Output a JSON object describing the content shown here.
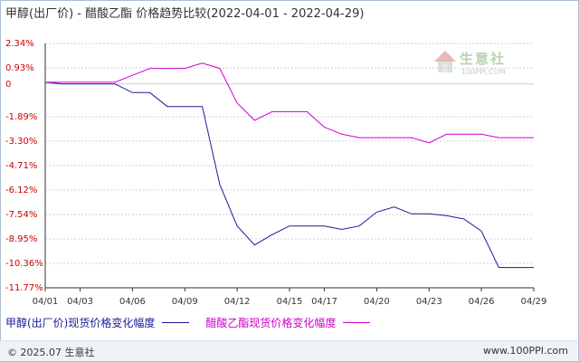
{
  "title": "甲醇(出厂价) - 醋酸乙酯 价格趋势比较(2022-04-01 - 2022-04-29)",
  "watermark": {
    "name": "生意社",
    "url": "100PPI.COM",
    "logo_icon": "house-logo-icon"
  },
  "legend": [
    {
      "label": "甲醇(出厂价)现货价格变化幅度",
      "color": "#1a1a99"
    },
    {
      "label": "醋酸乙酯现货价格变化幅度",
      "color": "#cc00cc"
    }
  ],
  "footer": {
    "copyright": "© 2025.07 生意社",
    "site": "www.100PPI.com"
  },
  "chart_data": {
    "type": "line",
    "ylim": [
      -11.77,
      2.34
    ],
    "xlim": [
      0,
      28
    ],
    "yticks": [
      2.34,
      0.93,
      0,
      -1.89,
      -3.3,
      -4.71,
      -6.12,
      -7.54,
      -8.95,
      -10.36,
      -11.77
    ],
    "ytick_labels": [
      "2.34%",
      "0.93%",
      "0",
      "-1.89%",
      "-3.30%",
      "-4.71%",
      "-6.12%",
      "-7.54%",
      "-8.95%",
      "-10.36%",
      "-11.77%"
    ],
    "xticks": [
      0,
      2,
      5,
      8,
      11,
      14,
      16,
      19,
      22,
      25,
      28
    ],
    "xtick_labels": [
      "04/01",
      "04/03",
      "04/06",
      "04/09",
      "04/12",
      "04/15",
      "04/17",
      "04/20",
      "04/23",
      "04/26",
      "04/29"
    ],
    "grid": "horizontal-dashed",
    "series": [
      {
        "name": "甲醇(出厂价)现货价格变化幅度",
        "color": "#1a1a99",
        "points": [
          [
            0,
            0.1
          ],
          [
            1,
            0
          ],
          [
            2,
            0
          ],
          [
            3,
            0
          ],
          [
            4,
            0
          ],
          [
            5,
            -0.5
          ],
          [
            6,
            -0.5
          ],
          [
            7,
            -1.3
          ],
          [
            8,
            -1.3
          ],
          [
            9,
            -1.3
          ],
          [
            10,
            -5.8
          ],
          [
            11,
            -8.2
          ],
          [
            12,
            -9.3
          ],
          [
            13,
            -8.7
          ],
          [
            14,
            -8.2
          ],
          [
            15,
            -8.2
          ],
          [
            16,
            -8.2
          ],
          [
            17,
            -8.4
          ],
          [
            18,
            -8.2
          ],
          [
            19,
            -7.4
          ],
          [
            20,
            -7.1
          ],
          [
            21,
            -7.5
          ],
          [
            22,
            -7.5
          ],
          [
            23,
            -7.6
          ],
          [
            24,
            -7.8
          ],
          [
            25,
            -8.5
          ],
          [
            26,
            -10.6
          ],
          [
            27,
            -10.6
          ],
          [
            28,
            -10.6
          ]
        ]
      },
      {
        "name": "醋酸乙酯现货价格变化幅度",
        "color": "#cc00cc",
        "points": [
          [
            0,
            0.1
          ],
          [
            1,
            0.1
          ],
          [
            2,
            0.1
          ],
          [
            3,
            0.1
          ],
          [
            4,
            0.1
          ],
          [
            5,
            0.5
          ],
          [
            6,
            0.9
          ],
          [
            7,
            0.9
          ],
          [
            8,
            0.9
          ],
          [
            9,
            1.2
          ],
          [
            10,
            0.9
          ],
          [
            11,
            -1.1
          ],
          [
            12,
            -2.1
          ],
          [
            13,
            -1.6
          ],
          [
            14,
            -1.6
          ],
          [
            15,
            -1.6
          ],
          [
            16,
            -2.5
          ],
          [
            17,
            -2.9
          ],
          [
            18,
            -3.1
          ],
          [
            19,
            -3.1
          ],
          [
            20,
            -3.1
          ],
          [
            21,
            -3.1
          ],
          [
            22,
            -3.4
          ],
          [
            23,
            -2.9
          ],
          [
            24,
            -2.9
          ],
          [
            25,
            -2.9
          ],
          [
            26,
            -3.1
          ],
          [
            27,
            -3.1
          ],
          [
            28,
            -3.1
          ]
        ]
      }
    ]
  }
}
